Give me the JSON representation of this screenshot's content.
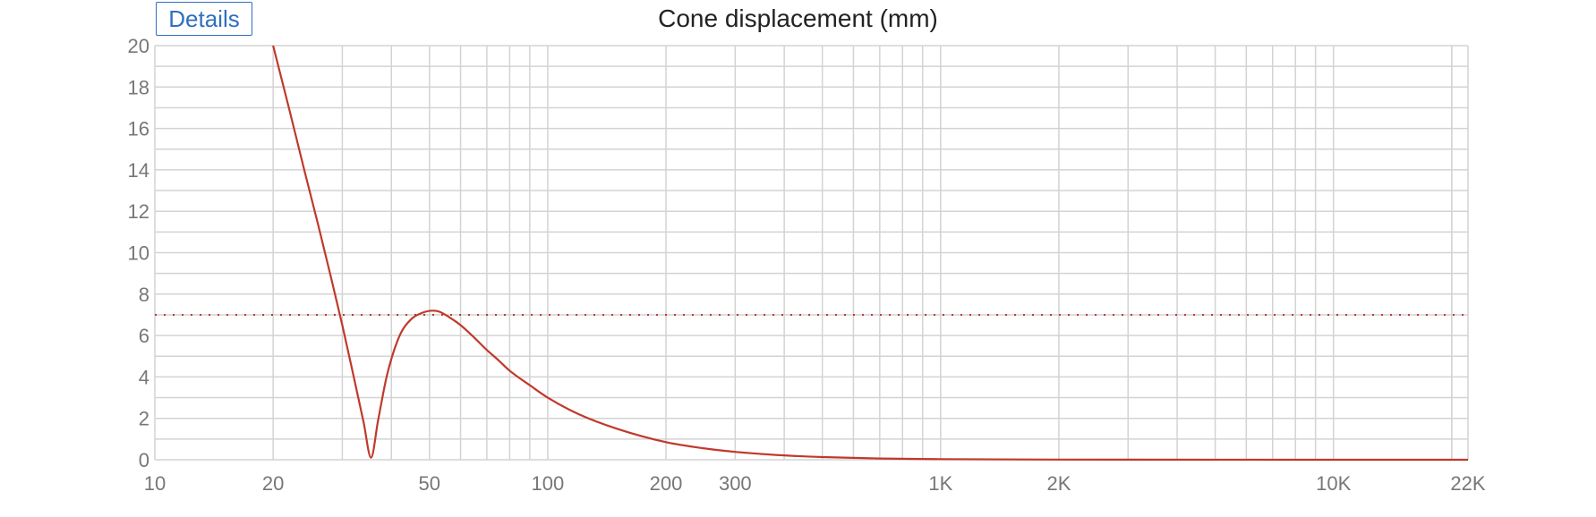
{
  "toolbar": {
    "details_label": "Details"
  },
  "colors": {
    "curve": "#c0392b",
    "limit_line": "#c0392b",
    "grid": "#d3d3d3",
    "tick_text": "#777777",
    "button": "#2f6fbf"
  },
  "chart_data": {
    "type": "line",
    "title": "Cone displacement (mm)",
    "xlabel": "",
    "ylabel": "",
    "x_scale": "log",
    "xlim": [
      10,
      22000
    ],
    "ylim": [
      0,
      20
    ],
    "grid": true,
    "y_ticks": [
      "0",
      "2",
      "4",
      "6",
      "8",
      "10",
      "12",
      "14",
      "16",
      "18",
      "20"
    ],
    "x_ticks": [
      {
        "value": 10,
        "label": "10"
      },
      {
        "value": 20,
        "label": "20"
      },
      {
        "value": 50,
        "label": "50"
      },
      {
        "value": 100,
        "label": "100"
      },
      {
        "value": 200,
        "label": "200"
      },
      {
        "value": 300,
        "label": "300"
      },
      {
        "value": 1000,
        "label": "1K"
      },
      {
        "value": 2000,
        "label": "2K"
      },
      {
        "value": 10000,
        "label": "10K"
      },
      {
        "value": 22000,
        "label": "22K"
      }
    ],
    "reference_line": {
      "y": 7,
      "style": "dotted"
    },
    "series": [
      {
        "x": [
          20,
          22,
          24,
          26,
          28,
          30,
          32,
          34,
          35.5,
          37,
          39,
          42,
          45,
          48,
          51,
          53,
          56,
          60,
          65,
          70,
          75,
          80,
          90,
          100,
          120,
          150,
          200,
          250,
          300,
          400,
          500,
          700,
          1000,
          2000,
          5000,
          10000,
          22000
        ],
        "y": [
          20,
          16.9,
          14.0,
          11.4,
          8.9,
          6.5,
          4.1,
          1.8,
          0.1,
          1.9,
          4.1,
          6.0,
          6.8,
          7.1,
          7.2,
          7.15,
          6.9,
          6.5,
          5.9,
          5.3,
          4.8,
          4.3,
          3.6,
          3.0,
          2.2,
          1.5,
          0.85,
          0.55,
          0.38,
          0.21,
          0.13,
          0.06,
          0.03,
          0.008,
          0.002,
          0.001,
          0.0
        ]
      }
    ]
  }
}
